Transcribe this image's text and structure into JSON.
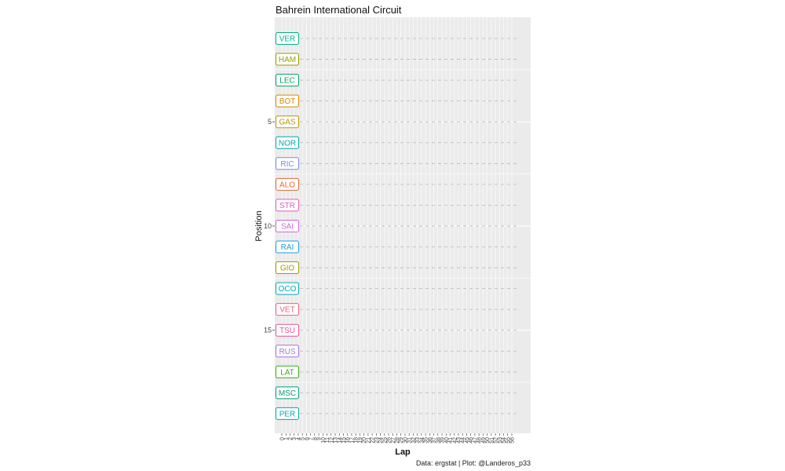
{
  "chart_data": {
    "type": "line",
    "title": "Bahrein International Circuit",
    "xlabel": "Lap",
    "ylabel": "Position",
    "caption": "Data: ergstat | Plot: @Landeros_p33",
    "x_ticks": [
      "0",
      "1",
      "2",
      "3",
      "4",
      "5",
      "6",
      "7",
      "8",
      "9",
      "10",
      "11",
      "12",
      "13",
      "14",
      "15",
      "16",
      "17",
      "18",
      "19",
      "20",
      "21",
      "22",
      "23",
      "24",
      "25",
      "26",
      "27",
      "28",
      "29",
      "30",
      "31",
      "32",
      "33",
      "34",
      "35",
      "36",
      "37",
      "38",
      "39",
      "40",
      "41",
      "42",
      "43",
      "44",
      "45",
      "46",
      "47",
      "48",
      "49",
      "50",
      "51",
      "52",
      "53",
      "54",
      "55",
      "56"
    ],
    "y_ticks": [
      5,
      10,
      15
    ],
    "ylim": [
      1,
      19
    ],
    "y_reversed": true,
    "grid": true,
    "series": [
      {
        "name": "VER",
        "position": 1,
        "color": "#00b386"
      },
      {
        "name": "HAM",
        "position": 2,
        "color": "#9a9a00"
      },
      {
        "name": "LEC",
        "position": 3,
        "color": "#00a060"
      },
      {
        "name": "BOT",
        "position": 4,
        "color": "#d08c00"
      },
      {
        "name": "GAS",
        "position": 5,
        "color": "#b89600"
      },
      {
        "name": "NOR",
        "position": 6,
        "color": "#00a5b0"
      },
      {
        "name": "RIC",
        "position": 7,
        "color": "#7b8ce0"
      },
      {
        "name": "ALO",
        "position": 8,
        "color": "#e8683a"
      },
      {
        "name": "STR",
        "position": 9,
        "color": "#e05cb8"
      },
      {
        "name": "SAI",
        "position": 10,
        "color": "#cc66e0"
      },
      {
        "name": "RAI",
        "position": 11,
        "color": "#1e9fd8"
      },
      {
        "name": "GIO",
        "position": 12,
        "color": "#a59a00"
      },
      {
        "name": "OCO",
        "position": 13,
        "color": "#00a8b8"
      },
      {
        "name": "VET",
        "position": 14,
        "color": "#f0607a"
      },
      {
        "name": "TSU",
        "position": 15,
        "color": "#e8559c"
      },
      {
        "name": "RUS",
        "position": 16,
        "color": "#a070e0"
      },
      {
        "name": "LAT",
        "position": 17,
        "color": "#3aa81a"
      },
      {
        "name": "MSC",
        "position": 18,
        "color": "#00a070"
      },
      {
        "name": "PER",
        "position": 19,
        "color": "#00a8b0"
      }
    ]
  }
}
